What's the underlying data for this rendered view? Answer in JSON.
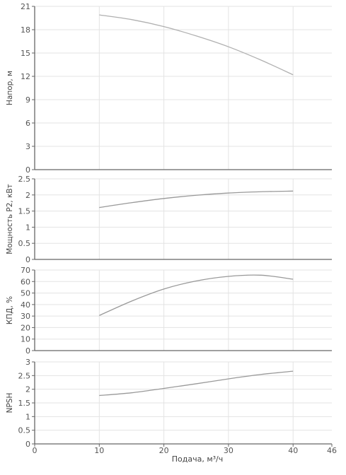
{
  "chart_data": [
    {
      "type": "line",
      "ylabel": "Напор, м",
      "xlim": [
        0,
        46
      ],
      "ylim": [
        0,
        21
      ],
      "yticks": [
        0,
        3,
        6,
        9,
        12,
        15,
        18,
        21
      ],
      "grid": true,
      "color": "#b0b0b0",
      "x": [
        10,
        15,
        20,
        25,
        30,
        35,
        40
      ],
      "values": [
        19.9,
        19.3,
        18.4,
        17.2,
        15.8,
        14.1,
        12.2
      ]
    },
    {
      "type": "line",
      "ylabel": "Мощность P2, кВт",
      "xlim": [
        0,
        46
      ],
      "ylim": [
        0,
        2.5
      ],
      "yticks": [
        0,
        0.5,
        1,
        1.5,
        2,
        2.5
      ],
      "grid": true,
      "color": "#999999",
      "x": [
        10,
        15,
        20,
        25,
        30,
        35,
        40
      ],
      "values": [
        1.61,
        1.76,
        1.89,
        1.99,
        2.06,
        2.1,
        2.12
      ]
    },
    {
      "type": "line",
      "ylabel": "КПД, %",
      "xlim": [
        0,
        46
      ],
      "ylim": [
        0,
        70
      ],
      "yticks": [
        0,
        10,
        20,
        30,
        40,
        50,
        60,
        70
      ],
      "grid": true,
      "color": "#999999",
      "x": [
        10,
        15,
        20,
        25,
        30,
        35,
        40
      ],
      "values": [
        30.5,
        43,
        53.5,
        60.5,
        64.5,
        65.5,
        62
      ]
    },
    {
      "type": "line",
      "ylabel": "NPSH",
      "xlabel": "Подача, м³/ч",
      "xlim": [
        0,
        46
      ],
      "xticks": [
        0,
        10,
        20,
        30,
        40,
        46
      ],
      "ylim": [
        0,
        3
      ],
      "yticks": [
        0,
        0.5,
        1,
        1.5,
        2,
        2.5,
        3
      ],
      "grid": true,
      "color": "#999999",
      "x": [
        10,
        15,
        20,
        25,
        30,
        35,
        40
      ],
      "values": [
        1.77,
        1.87,
        2.03,
        2.2,
        2.38,
        2.54,
        2.66
      ]
    }
  ]
}
